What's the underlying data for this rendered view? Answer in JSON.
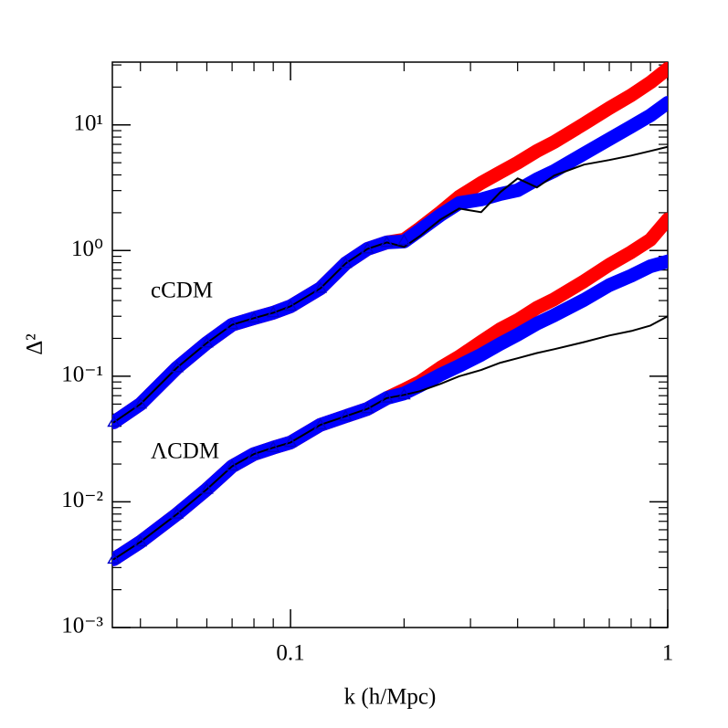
{
  "chart_data": {
    "type": "line",
    "xlabel": "k (h/Mpc)",
    "ylabel": "Δ²",
    "annotations": [
      "cCDM",
      "ΛCDM"
    ],
    "xscale": "log",
    "yscale": "log",
    "xlim": [
      0.0337,
      1
    ],
    "ylim": [
      0.001,
      31.6
    ],
    "xticks": [
      0.1,
      1
    ],
    "yticks": [
      {
        "value": 0.001,
        "label": "10⁻³"
      },
      {
        "value": 0.01,
        "label": "10⁻²"
      },
      {
        "value": 0.1,
        "label": "10⁻¹"
      },
      {
        "value": 1,
        "label": "10⁰"
      },
      {
        "value": 10,
        "label": "10¹"
      }
    ],
    "xminorticks": [
      0.04,
      0.05,
      0.06,
      0.07,
      0.08,
      0.09,
      0.2,
      0.3,
      0.4,
      0.5,
      0.6,
      0.7,
      0.8,
      0.9
    ],
    "yminorticks": [
      0.002,
      0.003,
      0.004,
      0.005,
      0.006,
      0.007,
      0.008,
      0.009,
      0.02,
      0.03,
      0.04,
      0.05,
      0.06,
      0.07,
      0.08,
      0.09,
      0.2,
      0.3,
      0.4,
      0.5,
      0.6,
      0.7,
      0.8,
      0.9,
      2,
      3,
      4,
      5,
      6,
      7,
      8,
      9,
      20,
      30
    ],
    "x": [
      0.034,
      0.04,
      0.05,
      0.06,
      0.07,
      0.08,
      0.09,
      0.1,
      0.12,
      0.14,
      0.16,
      0.18,
      0.2,
      0.22,
      0.25,
      0.28,
      0.32,
      0.36,
      0.4,
      0.45,
      0.5,
      0.6,
      0.7,
      0.8,
      0.9,
      1.0
    ],
    "series": [
      {
        "style": "band",
        "color": "#ff0000",
        "values": [
          0.043,
          0.06,
          0.117,
          0.184,
          0.257,
          0.29,
          0.32,
          0.36,
          0.5,
          0.79,
          1.03,
          1.16,
          1.22,
          1.5,
          2.02,
          2.68,
          3.45,
          4.2,
          5.0,
          6.2,
          7.3,
          10.2,
          13.6,
          17.2,
          21.8,
          28
        ]
      },
      {
        "style": "band",
        "color": "#0000ff",
        "values": [
          0.043,
          0.06,
          0.117,
          0.184,
          0.257,
          0.29,
          0.32,
          0.36,
          0.5,
          0.79,
          1.03,
          1.16,
          1.18,
          1.45,
          1.92,
          2.39,
          2.55,
          2.82,
          3.02,
          3.69,
          4.3,
          5.9,
          7.7,
          9.7,
          11.9,
          15.0
        ]
      },
      {
        "style": "line",
        "color": "#000000",
        "values": [
          0.043,
          0.06,
          0.117,
          0.184,
          0.257,
          0.29,
          0.32,
          0.36,
          0.5,
          0.79,
          1.03,
          1.16,
          1.07,
          1.3,
          1.77,
          2.16,
          2.02,
          2.92,
          3.75,
          3.18,
          3.95,
          4.83,
          5.25,
          5.7,
          6.2,
          6.7
        ]
      },
      {
        "style": "triangle",
        "color": "#0000cc",
        "values": [
          0.043,
          0.06,
          0.117,
          0.184,
          0.257,
          0.29,
          0.32,
          0.36,
          0.5,
          0.79,
          1.03,
          1.16,
          1.2,
          null,
          null,
          null,
          null,
          null,
          null,
          null,
          null,
          null,
          null,
          null,
          null,
          null
        ]
      },
      {
        "style": "band",
        "color": "#ff0000",
        "values": [
          0.0035,
          0.0048,
          0.008,
          0.0126,
          0.0192,
          0.024,
          0.027,
          0.0297,
          0.041,
          0.048,
          0.055,
          0.067,
          0.078,
          0.09,
          0.117,
          0.143,
          0.188,
          0.237,
          0.28,
          0.35,
          0.41,
          0.57,
          0.77,
          0.97,
          1.22,
          1.77
        ]
      },
      {
        "style": "band",
        "color": "#0000ff",
        "values": [
          0.0035,
          0.0048,
          0.008,
          0.0126,
          0.0192,
          0.024,
          0.027,
          0.0297,
          0.041,
          0.048,
          0.055,
          0.067,
          0.073,
          0.084,
          0.103,
          0.121,
          0.148,
          0.181,
          0.214,
          0.262,
          0.305,
          0.405,
          0.53,
          0.63,
          0.75,
          0.82
        ]
      },
      {
        "style": "line",
        "color": "#000000",
        "values": [
          0.0035,
          0.0048,
          0.008,
          0.0126,
          0.0192,
          0.024,
          0.027,
          0.0297,
          0.041,
          0.048,
          0.055,
          0.067,
          0.071,
          0.076,
          0.087,
          0.1,
          0.112,
          0.128,
          0.139,
          0.153,
          0.164,
          0.187,
          0.211,
          0.229,
          0.253,
          0.3
        ]
      },
      {
        "style": "triangle",
        "color": "#0000cc",
        "values": [
          0.0035,
          0.0048,
          0.008,
          0.0126,
          0.0192,
          0.024,
          0.027,
          0.0297,
          0.041,
          0.048,
          0.055,
          0.067,
          0.071,
          null,
          null,
          null,
          null,
          null,
          null,
          null,
          null,
          null,
          null,
          null,
          null,
          null
        ]
      }
    ]
  }
}
